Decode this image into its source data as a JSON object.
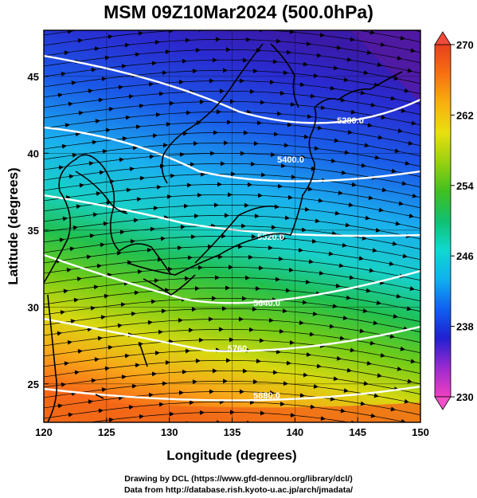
{
  "title": "MSM 09Z10Mar2024 (500.0hPa)",
  "xlabel": "Longitude (degrees)",
  "ylabel": "Latitude  (degrees)",
  "x_ticks": [
    "120",
    "125",
    "130",
    "135",
    "140",
    "145",
    "150"
  ],
  "y_ticks": [
    "25",
    "30",
    "35",
    "40",
    "45"
  ],
  "colorbar": {
    "ticks": [
      "270",
      "262",
      "254",
      "246",
      "238",
      "230"
    ],
    "min": 230,
    "max": 270,
    "stops": [
      "#f040c0",
      "#9a2ad0",
      "#2020d0",
      "#1060f0",
      "#10b0f0",
      "#10d8d0",
      "#10c070",
      "#40c020",
      "#9ad010",
      "#e8e010",
      "#f8b010",
      "#f87010",
      "#e84020"
    ]
  },
  "contours": [
    {
      "label": "5880.0"
    },
    {
      "label": "5760"
    },
    {
      "label": "5640.0"
    },
    {
      "label": "5520.0"
    },
    {
      "label": "5400.0"
    },
    {
      "label": "5280.0"
    }
  ],
  "credits": {
    "line1": "Drawing by DCL (https://www.gfd-dennou.org/library/dcl/)",
    "line2": "Data from http://database.rish.kyoto-u.ac.jp/arch/jmadata/"
  },
  "chart_data": {
    "type": "map",
    "field": "temperature (K) with geopotential height contours and wind streamlines",
    "level": "500.0hPa",
    "xlim": [
      120,
      150
    ],
    "ylim": [
      22.5,
      48
    ],
    "color_range": [
      230,
      270
    ]
  }
}
